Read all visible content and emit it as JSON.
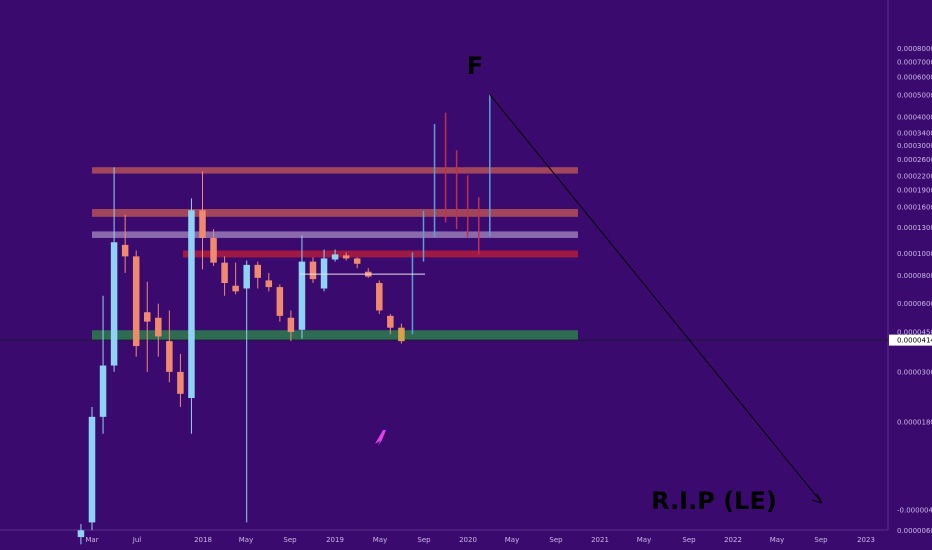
{
  "chart_data": {
    "type": "candlestick",
    "title": "",
    "xlabel": "",
    "ylabel": "",
    "y_scale": "log",
    "grid": false,
    "x_tick_labels": [
      "Mar",
      "Jul",
      "2018",
      "May",
      "Sep",
      "2019",
      "May",
      "Sep",
      "2020",
      "May",
      "Sep",
      "2021",
      "May",
      "Sep",
      "2022",
      "May",
      "Sep",
      "2023"
    ],
    "y_tick_labels": [
      "0.00080000",
      "0.00070000",
      "0.00060000",
      "0.00050000",
      "0.00040000",
      "0.00034000",
      "0.00030000",
      "0.00026000",
      "0.00022000",
      "0.00019000",
      "0.00016000",
      "0.00013000",
      "0.00010000",
      "0.00008000",
      "0.00006000",
      "0.00004500",
      "0.00003000",
      "0.00001800",
      "0.00000600",
      "0.00000400",
      "-0.00000400"
    ],
    "current_price": "0.00004143",
    "zones": [
      {
        "name": "resistance-top",
        "from": 0.000225,
        "to": 0.00024,
        "color": "#b4505a"
      },
      {
        "name": "resistance-mid",
        "from": 0.000145,
        "to": 0.000157,
        "color": "#b4505a"
      },
      {
        "name": "resistance-light",
        "from": 0.000117,
        "to": 0.000125,
        "color": "#9a7ab8"
      },
      {
        "name": "resistance-red",
        "from": 9.6e-05,
        "to": 0.000103,
        "color": "#b01c3c"
      },
      {
        "name": "support-green",
        "from": 4.13e-05,
        "to": 4.58e-05,
        "color": "#2e7d4f"
      }
    ],
    "candles": [
      {
        "date": "2017-02",
        "open": 5.6e-06,
        "high": 6.4e-06,
        "low": 5.2e-06,
        "close": 6e-06
      },
      {
        "date": "2017-03",
        "open": 6.5e-06,
        "high": 2.1e-05,
        "low": 6e-06,
        "close": 1.9e-05
      },
      {
        "date": "2017-04",
        "open": 1.9e-05,
        "high": 6.5e-05,
        "low": 1.6e-05,
        "close": 3.2e-05
      },
      {
        "date": "2017-05",
        "open": 3.2e-05,
        "high": 0.00024,
        "low": 3e-05,
        "close": 0.000112
      },
      {
        "date": "2017-06",
        "open": 0.000109,
        "high": 0.000148,
        "low": 8.2e-05,
        "close": 9.7e-05
      },
      {
        "date": "2017-07",
        "open": 9.7e-05,
        "high": 0.000103,
        "low": 3.5e-05,
        "close": 3.9e-05
      },
      {
        "date": "2017-08",
        "open": 5.5e-05,
        "high": 7.5e-05,
        "low": 3e-05,
        "close": 5e-05
      },
      {
        "date": "2017-09",
        "open": 5.2e-05,
        "high": 6e-05,
        "low": 3.5e-05,
        "close": 4.3e-05
      },
      {
        "date": "2017-10",
        "open": 4.1e-05,
        "high": 5.6e-05,
        "low": 2.7e-05,
        "close": 3e-05
      },
      {
        "date": "2017-11",
        "open": 3e-05,
        "high": 3.6e-05,
        "low": 2.1e-05,
        "close": 2.4e-05
      },
      {
        "date": "2017-12",
        "open": 2.3e-05,
        "high": 0.000175,
        "low": 1.6e-05,
        "close": 0.000155
      },
      {
        "date": "2018-01",
        "open": 0.000155,
        "high": 0.00023,
        "low": 8.5e-05,
        "close": 0.000117
      },
      {
        "date": "2018-02",
        "open": 0.000117,
        "high": 0.000128,
        "low": 8.8e-05,
        "close": 9.1e-05
      },
      {
        "date": "2018-03",
        "open": 9.1e-05,
        "high": 9.7e-05,
        "low": 6.5e-05,
        "close": 7.4e-05
      },
      {
        "date": "2018-04",
        "open": 7.2e-05,
        "high": 9.1e-05,
        "low": 6.6e-05,
        "close": 6.8e-05
      },
      {
        "date": "2018-05",
        "open": 7e-05,
        "high": 9.3e-05,
        "low": 6.5e-06,
        "close": 8.9e-05
      },
      {
        "date": "2018-06",
        "open": 8.9e-05,
        "high": 9.2e-05,
        "low": 7e-05,
        "close": 7.8e-05
      },
      {
        "date": "2018-07",
        "open": 7.6e-05,
        "high": 8.2e-05,
        "low": 6.8e-05,
        "close": 7.1e-05
      },
      {
        "date": "2018-08",
        "open": 7.1e-05,
        "high": 7.3e-05,
        "low": 5e-05,
        "close": 5.3e-05
      },
      {
        "date": "2018-09",
        "open": 5.2e-05,
        "high": 5.6e-05,
        "low": 4.1e-05,
        "close": 4.5e-05
      },
      {
        "date": "2018-10",
        "open": 4.6e-05,
        "high": 0.00012,
        "low": 4.2e-05,
        "close": 9.2e-05
      },
      {
        "date": "2018-11",
        "open": 9.2e-05,
        "high": 9.6e-05,
        "low": 7.4e-05,
        "close": 7.7e-05
      },
      {
        "date": "2018-12",
        "open": 7e-05,
        "high": 0.000104,
        "low": 6.8e-05,
        "close": 9.5e-05
      },
      {
        "date": "2019-01",
        "open": 9.4e-05,
        "high": 0.000104,
        "low": 9.2e-05,
        "close": 9.9e-05
      },
      {
        "date": "2019-02",
        "open": 9.8e-05,
        "high": 0.000101,
        "low": 9.3e-05,
        "close": 9.5e-05
      },
      {
        "date": "2019-03",
        "open": 9.5e-05,
        "high": 9.6e-05,
        "low": 8.6e-05,
        "close": 9e-05
      },
      {
        "date": "2019-04",
        "open": 8.3e-05,
        "high": 8.6e-05,
        "low": 7.8e-05,
        "close": 7.9e-05
      },
      {
        "date": "2019-05",
        "open": 7.4e-05,
        "high": 7.6e-05,
        "low": 5.4e-05,
        "close": 5.6e-05
      },
      {
        "date": "2019-06",
        "open": 5.3e-05,
        "high": 5.4e-05,
        "low": 4.4e-05,
        "close": 4.7e-05
      },
      {
        "date": "2019-07",
        "open": 4.1e-05,
        "high": 4.9e-05,
        "low": 4e-05,
        "close": 4.7e-05
      }
    ],
    "projection_bars": [
      {
        "date": "2019-08",
        "low": 4.4e-05,
        "high": 0.000101,
        "color": "#5a9fd8"
      },
      {
        "date": "2019-09",
        "low": 9.2e-05,
        "high": 0.000154,
        "color": "#5a9fd8"
      },
      {
        "date": "2019-10",
        "low": 0.000118,
        "high": 0.000372,
        "color": "#5a9fd8"
      },
      {
        "date": "2019-11",
        "low": 0.000137,
        "high": 0.000418,
        "color": "#c0304a"
      },
      {
        "date": "2019-12",
        "low": 0.000128,
        "high": 0.000285,
        "color": "#c0304a"
      },
      {
        "date": "2020-01",
        "low": 0.000118,
        "high": 0.000221,
        "color": "#c0304a"
      },
      {
        "date": "2020-02",
        "low": 9.9e-05,
        "high": 0.000177,
        "color": "#c0304a"
      },
      {
        "date": "2020-03",
        "low": 0.000119,
        "high": 0.000502,
        "color": "#5a9fd8"
      }
    ],
    "annotations": [
      {
        "text": "F"
      },
      {
        "text": "R.I.P (LE)"
      }
    ],
    "colors": {
      "background": "#3b0a6e",
      "up_candle": "#8fd3f4",
      "down_candle": "#f08a6e",
      "neutral_candle": "#d8a04a",
      "price_line": "#1a1a2e",
      "rocket": "#e040e0"
    }
  }
}
